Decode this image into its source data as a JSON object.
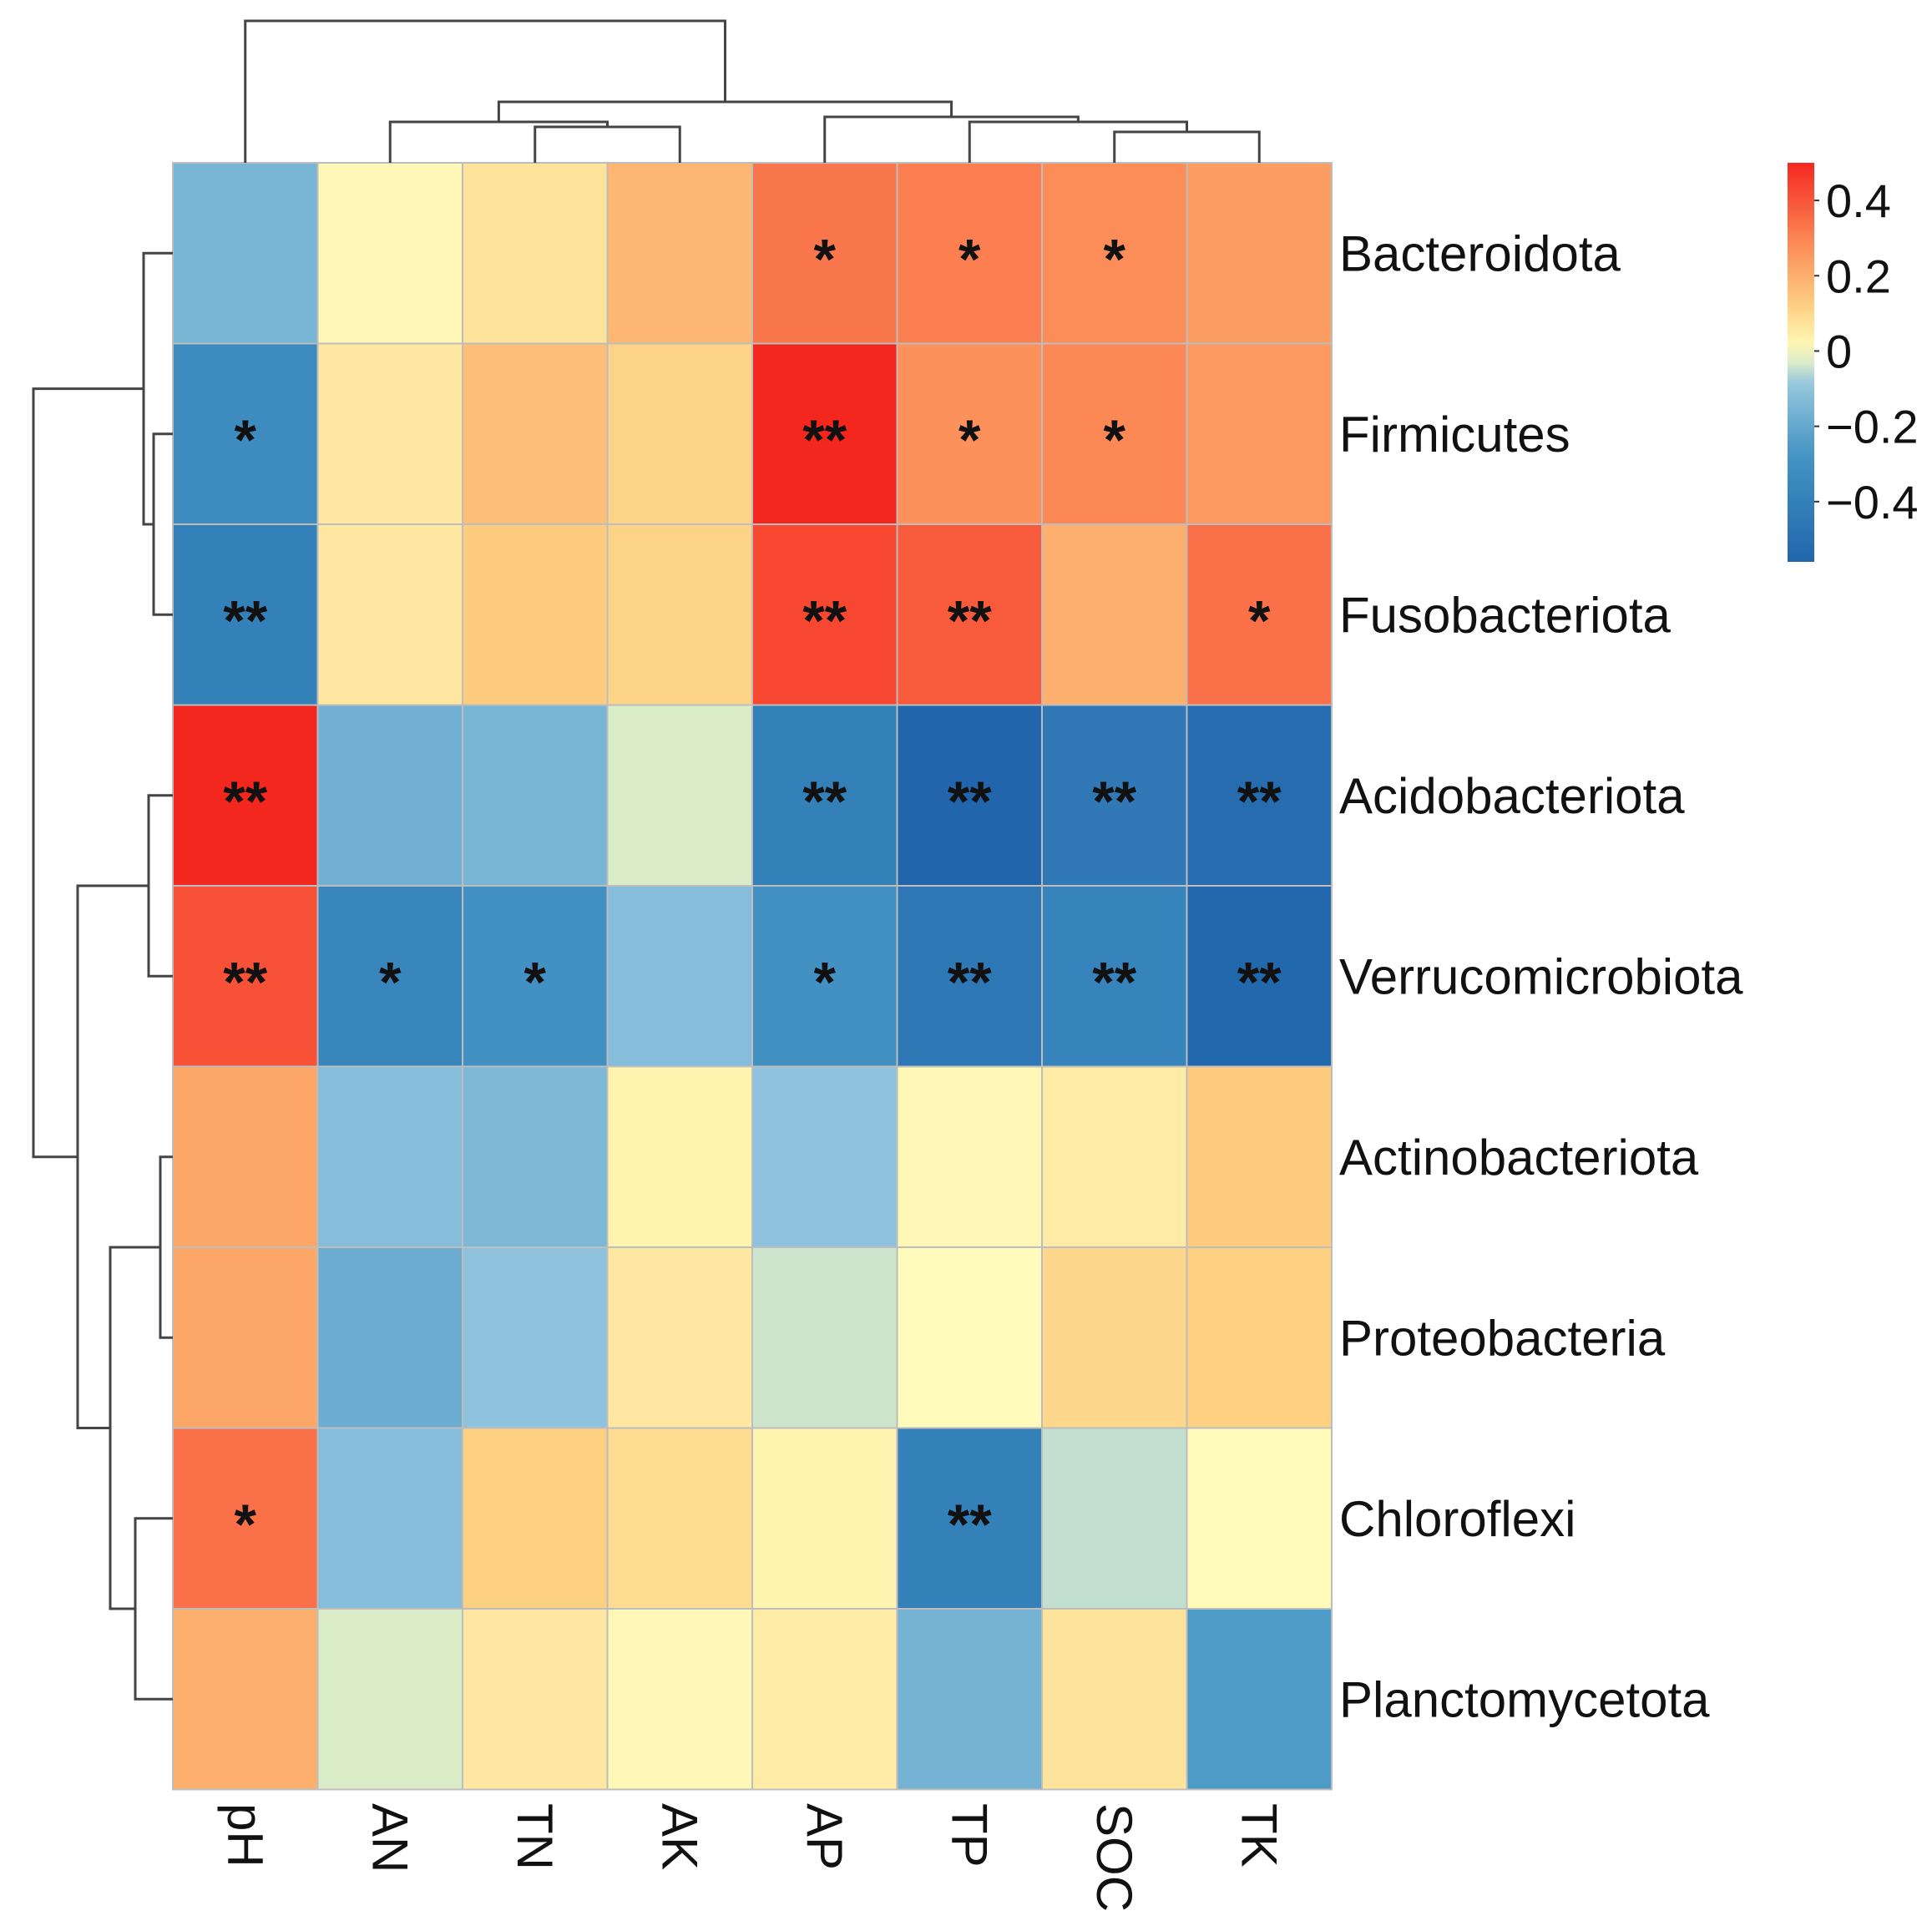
{
  "chart_data": {
    "type": "heatmap",
    "title": "",
    "rows": [
      "Bacteroidota",
      "Firmicutes",
      "Fusobacteriota",
      "Acidobacteriota",
      "Verrucomicrobiota",
      "Actinobacteriota",
      "Proteobacteria",
      "Chloroflexi",
      "Planctomycetota"
    ],
    "columns": [
      "pH",
      "AN",
      "TN",
      "AK",
      "AP",
      "TP",
      "SOC",
      "TK"
    ],
    "values": [
      [
        -0.15,
        0.02,
        0.07,
        0.18,
        0.33,
        0.31,
        0.28,
        0.24
      ],
      [
        -0.33,
        0.06,
        0.16,
        0.11,
        0.5,
        0.27,
        0.29,
        0.25
      ],
      [
        -0.4,
        0.06,
        0.13,
        0.11,
        0.43,
        0.39,
        0.2,
        0.34
      ],
      [
        0.5,
        -0.17,
        -0.15,
        -0.03,
        -0.4,
        -0.56,
        -0.44,
        -0.52
      ],
      [
        0.41,
        -0.36,
        -0.29,
        -0.12,
        -0.29,
        -0.45,
        -0.38,
        -0.55
      ],
      [
        0.22,
        -0.12,
        -0.14,
        0.03,
        -0.1,
        0.02,
        0.05,
        0.13
      ],
      [
        0.22,
        -0.18,
        -0.1,
        0.06,
        -0.04,
        0.01,
        0.1,
        0.12
      ],
      [
        0.34,
        -0.12,
        0.12,
        0.09,
        0.03,
        -0.4,
        -0.05,
        0.01
      ],
      [
        0.2,
        -0.03,
        0.06,
        0.02,
        0.05,
        -0.16,
        0.07,
        -0.25
      ]
    ],
    "significance": [
      [
        "",
        "",
        "",
        "",
        "*",
        "*",
        "*",
        ""
      ],
      [
        "*",
        "",
        "",
        "",
        "**",
        "*",
        "*",
        ""
      ],
      [
        "**",
        "",
        "",
        "",
        "**",
        "**",
        "",
        "*"
      ],
      [
        "**",
        "",
        "",
        "",
        "**",
        "**",
        "**",
        "**"
      ],
      [
        "**",
        "*",
        "*",
        "",
        "*",
        "**",
        "**",
        "**"
      ],
      [
        "",
        "",
        "",
        "",
        "",
        "",
        "",
        ""
      ],
      [
        "",
        "",
        "",
        "",
        "",
        "",
        "",
        ""
      ],
      [
        "*",
        "",
        "",
        "",
        "",
        "**",
        "",
        ""
      ],
      [
        "",
        "",
        "",
        "",
        "",
        "",
        "",
        ""
      ]
    ],
    "color_scale": {
      "min": -0.56,
      "max": 0.5,
      "ticks": [
        0.4,
        0.2,
        0,
        -0.2,
        -0.4
      ],
      "tick_labels": [
        "0.4",
        "0.2",
        "0",
        "−0.2",
        "−0.4"
      ],
      "low_color": "#2166ac",
      "mid_color": "#ffffbf",
      "high_color": "#f4271f"
    },
    "legend_position": "top-right",
    "row_dendrogram": true,
    "column_dendrogram": true
  }
}
